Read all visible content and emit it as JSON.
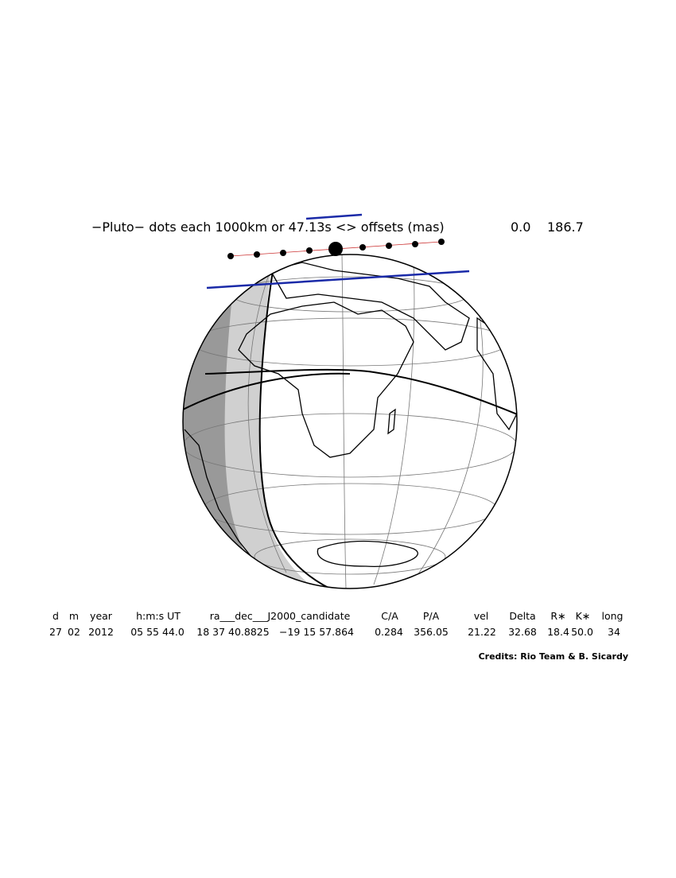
{
  "title": "−Pluto− dots each 1000km or 47.13s <> offsets (mas)",
  "offsets": [
    "0.0",
    "186.7"
  ],
  "table": {
    "header": [
      "d",
      "m",
      "year",
      "h:m:s UT",
      "ra___dec___J2000_candidate",
      "C/A",
      "P/A",
      "vel",
      "Delta",
      "R∗",
      "K∗",
      "long"
    ],
    "row": [
      "27",
      "02",
      "2012",
      "05 55 44.0",
      "18 37 40.8825",
      "−19 15 57.864",
      "0.284",
      "356.05",
      "21.22",
      "32.68",
      "18.4",
      "50.0",
      "34"
    ]
  },
  "credits": "Credits: Rio Team & B. Sicardy"
}
